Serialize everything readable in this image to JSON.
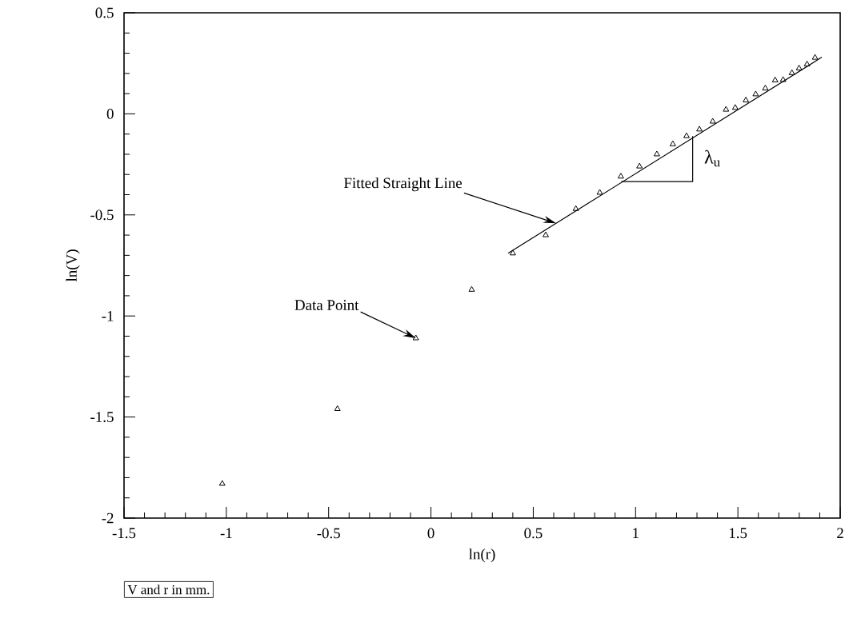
{
  "chart_data": {
    "type": "scatter",
    "xlabel": "ln(r)",
    "ylabel": "ln(V)",
    "xlim": [
      -1.5,
      2
    ],
    "ylim": [
      -2,
      0.5
    ],
    "xticks": [
      -1.5,
      -1,
      -0.5,
      0,
      0.5,
      1,
      1.5,
      2
    ],
    "yticks": [
      -2,
      -1.5,
      -1,
      -0.5,
      0,
      0.5
    ],
    "series": [
      {
        "marker": "triangle",
        "color": "#000000",
        "x": [
          -1.02,
          -0.457,
          -0.074,
          0.199,
          0.4,
          0.561,
          0.708,
          0.825,
          0.928,
          1.019,
          1.104,
          1.182,
          1.249,
          1.312,
          1.377,
          1.442,
          1.487,
          1.539,
          1.587,
          1.634,
          1.682,
          1.721,
          1.764,
          1.799,
          1.838,
          1.877
        ],
        "values": [
          -1.83,
          -1.46,
          -1.11,
          -0.87,
          -0.69,
          -0.6,
          -0.47,
          -0.39,
          -0.31,
          -0.26,
          -0.2,
          -0.15,
          -0.11,
          -0.077,
          -0.038,
          0.021,
          0.03,
          0.067,
          0.097,
          0.126,
          0.166,
          0.168,
          0.202,
          0.225,
          0.245,
          0.278
        ]
      },
      {
        "type": "line",
        "marker": "none",
        "color": "#000000",
        "x": [
          0.377,
          1.91
        ],
        "values": [
          -0.69,
          0.28
        ]
      },
      {
        "type": "line",
        "marker": "none",
        "color": "#000000",
        "x": [
          0.93,
          1.279,
          1.279
        ],
        "values": [
          -0.335,
          -0.335,
          -0.11
        ]
      }
    ],
    "annotations": [
      "Fitted Straight Line",
      "Data Point",
      "λ$_{u}$",
      "V and r in mm."
    ]
  }
}
